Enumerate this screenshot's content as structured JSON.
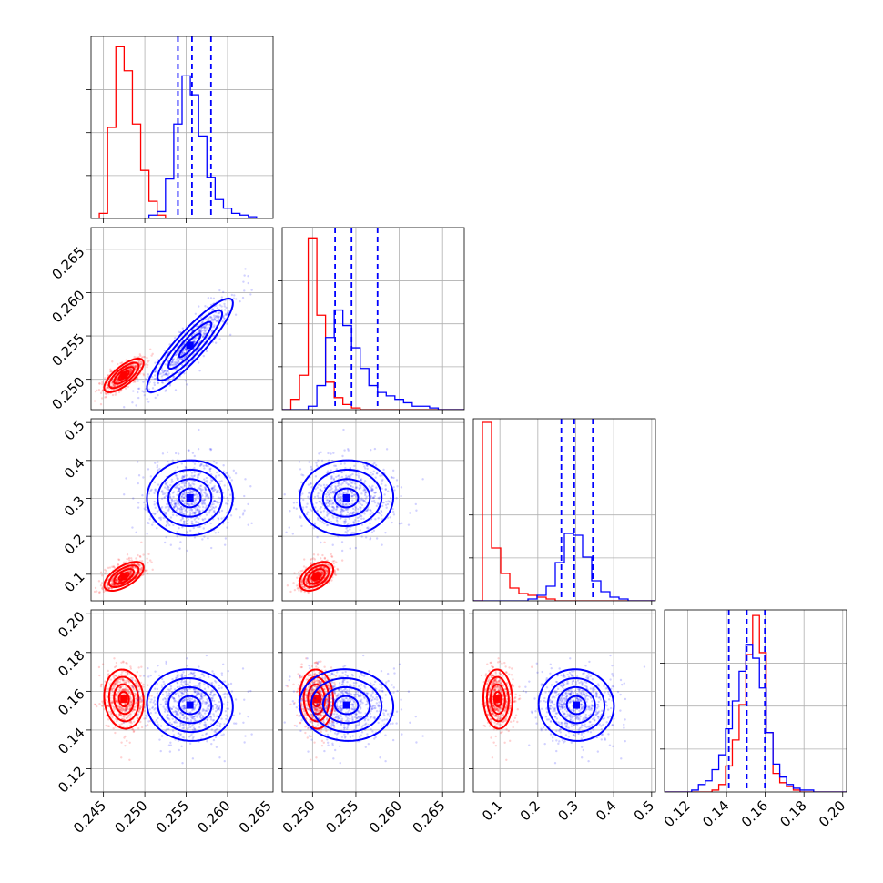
{
  "chart_data": {
    "type": "corner",
    "colors": {
      "red": "#ff0000",
      "blue": "#0000ff"
    },
    "grid": true,
    "parameters": [
      {
        "range": [
          0.2435,
          0.2655
        ],
        "ticks": [
          0.245,
          0.25,
          0.255,
          0.26,
          0.265
        ],
        "tick_labels": [
          "0.245",
          "0.250",
          "0.255",
          "0.260",
          "0.265"
        ]
      },
      {
        "range": [
          0.2465,
          0.2675
        ],
        "ticks": [
          0.25,
          0.255,
          0.26,
          0.265
        ],
        "tick_labels": [
          "0.250",
          "0.255",
          "0.260",
          "0.265"
        ]
      },
      {
        "range": [
          0.03,
          0.51
        ],
        "ticks": [
          0.1,
          0.2,
          0.3,
          0.4,
          0.5
        ],
        "tick_labels": [
          "0.1",
          "0.2",
          "0.3",
          "0.4",
          "0.5"
        ]
      },
      {
        "range": [
          0.108,
          0.202
        ],
        "ticks": [
          0.12,
          0.14,
          0.16,
          0.18,
          0.2
        ],
        "tick_labels": [
          "0.12",
          "0.14",
          "0.16",
          "0.18",
          "0.20"
        ]
      }
    ],
    "histograms": [
      {
        "bins": [
          0.2435,
          0.2445,
          0.2455,
          0.2465,
          0.2475,
          0.2485,
          0.2495,
          0.2505,
          0.2515,
          0.2525,
          0.2535,
          0.2545,
          0.2555,
          0.2565,
          0.2575,
          0.2585,
          0.2595,
          0.2605,
          0.2615,
          0.2625,
          0.2635,
          0.2645,
          0.2655
        ],
        "ymax": 1.06,
        "red": [
          0.0,
          0.03,
          0.53,
          1.0,
          0.86,
          0.55,
          0.28,
          0.1,
          0.02,
          0.0,
          0.0,
          0.0,
          0.0,
          0.0,
          0.0,
          0.0,
          0.0,
          0.0,
          0.0,
          0.0,
          0.0,
          0.0
        ],
        "blue": [
          0.0,
          0.0,
          0.0,
          0.0,
          0.0,
          0.0,
          0.0,
          0.02,
          0.04,
          0.23,
          0.55,
          0.83,
          0.72,
          0.48,
          0.24,
          0.11,
          0.06,
          0.03,
          0.02,
          0.01,
          0.0,
          0.0
        ],
        "quantiles": [
          0.254,
          0.2557,
          0.258
        ]
      },
      {
        "bins": [
          0.2465,
          0.2475,
          0.2485,
          0.2495,
          0.2505,
          0.2515,
          0.2525,
          0.2535,
          0.2545,
          0.2555,
          0.2565,
          0.2575,
          0.2585,
          0.2595,
          0.2605,
          0.2615,
          0.2625,
          0.2635,
          0.2645,
          0.2655,
          0.2665,
          0.2675
        ],
        "ymax": 1.06,
        "red": [
          0.0,
          0.06,
          0.2,
          1.0,
          0.55,
          0.16,
          0.07,
          0.03,
          0.01,
          0.0,
          0.0,
          0.0,
          0.0,
          0.0,
          0.0,
          0.0,
          0.0,
          0.0,
          0.0,
          0.0,
          0.0
        ],
        "blue": [
          0.0,
          0.0,
          0.0,
          0.02,
          0.14,
          0.42,
          0.58,
          0.49,
          0.36,
          0.24,
          0.14,
          0.1,
          0.08,
          0.06,
          0.04,
          0.02,
          0.02,
          0.01,
          0.0,
          0.0,
          0.0
        ],
        "quantiles": [
          0.2526,
          0.2545,
          0.2575
        ]
      },
      {
        "bins": [
          0.03,
          0.054,
          0.078,
          0.102,
          0.126,
          0.15,
          0.174,
          0.198,
          0.222,
          0.246,
          0.27,
          0.294,
          0.318,
          0.342,
          0.366,
          0.39,
          0.414,
          0.438,
          0.462,
          0.486,
          0.51
        ],
        "ymax": 1.0,
        "red": [
          0.0,
          0.98,
          0.29,
          0.15,
          0.07,
          0.04,
          0.03,
          0.02,
          0.01,
          0.0,
          0.0,
          0.0,
          0.0,
          0.0,
          0.0,
          0.0,
          0.0,
          0.0,
          0.0,
          0.0
        ],
        "blue": [
          0.0,
          0.0,
          0.0,
          0.0,
          0.0,
          0.0,
          0.01,
          0.03,
          0.08,
          0.21,
          0.37,
          0.36,
          0.24,
          0.11,
          0.05,
          0.02,
          0.01,
          0.0,
          0.0,
          0.0
        ],
        "quantiles": [
          0.262,
          0.296,
          0.345
        ]
      },
      {
        "bins": [
          0.108,
          0.1115,
          0.115,
          0.1185,
          0.122,
          0.1255,
          0.129,
          0.1325,
          0.136,
          0.1395,
          0.143,
          0.1465,
          0.15,
          0.1535,
          0.157,
          0.1605,
          0.164,
          0.1675,
          0.171,
          0.1745,
          0.178,
          0.1815,
          0.185,
          0.1885,
          0.192,
          0.1955,
          0.199,
          0.2025
        ],
        "ymax": 0.98,
        "red": [
          0.0,
          0.0,
          0.0,
          0.0,
          0.0,
          0.0,
          0.0,
          0.01,
          0.04,
          0.14,
          0.28,
          0.47,
          0.74,
          0.95,
          0.75,
          0.32,
          0.1,
          0.05,
          0.03,
          0.01,
          0.0,
          0.0,
          0.0,
          0.0,
          0.0,
          0.0,
          0.0
        ],
        "blue": [
          0.0,
          0.0,
          0.0,
          0.0,
          0.01,
          0.04,
          0.06,
          0.12,
          0.2,
          0.34,
          0.49,
          0.65,
          0.79,
          0.72,
          0.56,
          0.32,
          0.15,
          0.08,
          0.04,
          0.02,
          0.01,
          0.01,
          0.0,
          0.0,
          0.0,
          0.0,
          0.0
        ],
        "quantiles": [
          0.1412,
          0.1505,
          0.1598
        ]
      }
    ],
    "samples": {
      "red": {
        "mean": [
          0.2475,
          0.2505,
          0.075,
          0.156
        ],
        "sd": [
          0.0012,
          0.0009,
          0.018,
          0.0075
        ],
        "n": 700
      },
      "blue": {
        "mean": [
          0.2555,
          0.254,
          0.3,
          0.153
        ],
        "sd": [
          0.0025,
          0.0027,
          0.05,
          0.009
        ],
        "n": 700
      }
    }
  }
}
